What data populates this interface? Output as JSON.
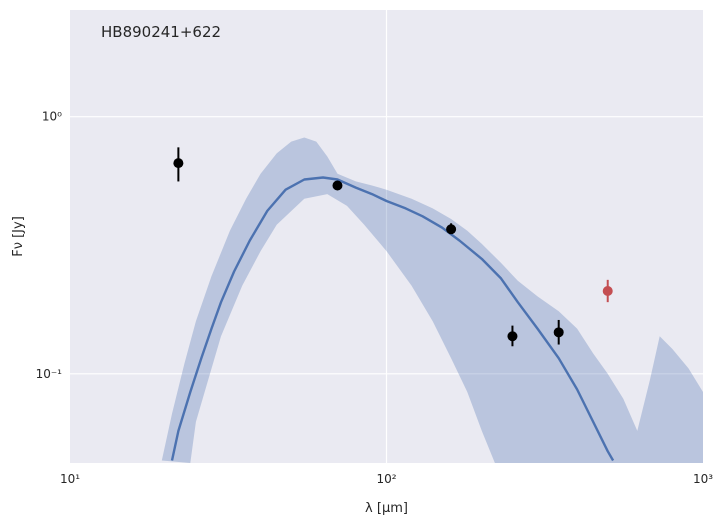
{
  "chart_data": {
    "type": "scatter",
    "annotation": "HB890241+622",
    "xlabel": "λ [μm]",
    "ylabel": "Fν [Jy]",
    "xscale": "log",
    "yscale": "log",
    "xlim": [
      10,
      1000
    ],
    "ylim": [
      0.045,
      2.6
    ],
    "grid": true,
    "background_color": "#EAEAF2",
    "x_ticks": [
      {
        "value": 10,
        "label": "10¹"
      },
      {
        "value": 100,
        "label": "10²"
      },
      {
        "value": 1000,
        "label": "10³"
      }
    ],
    "y_ticks": [
      {
        "value": 0.1,
        "label": "10⁻¹"
      },
      {
        "value": 1,
        "label": "10⁰"
      }
    ],
    "series": [
      {
        "kind": "model_line",
        "color": "#4C72B0",
        "points": [
          [
            21,
            0.046
          ],
          [
            22,
            0.06
          ],
          [
            24,
            0.085
          ],
          [
            26,
            0.115
          ],
          [
            28,
            0.15
          ],
          [
            30,
            0.19
          ],
          [
            33,
            0.25
          ],
          [
            37,
            0.33
          ],
          [
            42,
            0.43
          ],
          [
            48,
            0.52
          ],
          [
            55,
            0.57
          ],
          [
            63,
            0.58
          ],
          [
            70,
            0.57
          ],
          [
            80,
            0.53
          ],
          [
            90,
            0.5
          ],
          [
            100,
            0.47
          ],
          [
            115,
            0.44
          ],
          [
            130,
            0.41
          ],
          [
            150,
            0.37
          ],
          [
            170,
            0.33
          ],
          [
            200,
            0.28
          ],
          [
            230,
            0.235
          ],
          [
            260,
            0.19
          ],
          [
            300,
            0.15
          ],
          [
            350,
            0.115
          ],
          [
            400,
            0.087
          ],
          [
            450,
            0.065
          ],
          [
            500,
            0.05
          ],
          [
            520,
            0.046
          ]
        ]
      },
      {
        "kind": "uncertainty_band",
        "color": "#4C72B0",
        "upper": [
          [
            19.5,
            0.046
          ],
          [
            21,
            0.07
          ],
          [
            23,
            0.11
          ],
          [
            25,
            0.16
          ],
          [
            28,
            0.24
          ],
          [
            32,
            0.36
          ],
          [
            36,
            0.48
          ],
          [
            40,
            0.6
          ],
          [
            45,
            0.72
          ],
          [
            50,
            0.8
          ],
          [
            55,
            0.83
          ],
          [
            60,
            0.8
          ],
          [
            65,
            0.7
          ],
          [
            70,
            0.6
          ],
          [
            80,
            0.56
          ],
          [
            90,
            0.54
          ],
          [
            100,
            0.52
          ],
          [
            120,
            0.48
          ],
          [
            140,
            0.44
          ],
          [
            160,
            0.4
          ],
          [
            180,
            0.36
          ],
          [
            200,
            0.32
          ],
          [
            230,
            0.27
          ],
          [
            260,
            0.23
          ],
          [
            300,
            0.2
          ],
          [
            350,
            0.175
          ],
          [
            400,
            0.15
          ],
          [
            450,
            0.12
          ],
          [
            500,
            0.1
          ],
          [
            560,
            0.08
          ],
          [
            620,
            0.06
          ],
          [
            680,
            0.095
          ],
          [
            730,
            0.14
          ],
          [
            800,
            0.125
          ],
          [
            900,
            0.105
          ],
          [
            1000,
            0.085
          ]
        ],
        "lower": [
          [
            1000,
            0.045
          ],
          [
            220,
            0.045
          ],
          [
            200,
            0.06
          ],
          [
            180,
            0.085
          ],
          [
            160,
            0.115
          ],
          [
            140,
            0.16
          ],
          [
            120,
            0.22
          ],
          [
            100,
            0.3
          ],
          [
            85,
            0.38
          ],
          [
            75,
            0.45
          ],
          [
            65,
            0.5
          ],
          [
            55,
            0.48
          ],
          [
            45,
            0.38
          ],
          [
            40,
            0.3
          ],
          [
            35,
            0.22
          ],
          [
            30,
            0.14
          ],
          [
            27,
            0.09
          ],
          [
            25,
            0.065
          ],
          [
            24,
            0.045
          ]
        ]
      },
      {
        "kind": "data_points",
        "color": "#000000",
        "points": [
          {
            "x": 22,
            "y": 0.66,
            "yerr": [
              0.56,
              0.76
            ]
          },
          {
            "x": 70,
            "y": 0.54,
            "yerr": [
              0.52,
              0.56
            ]
          },
          {
            "x": 160,
            "y": 0.365,
            "yerr": [
              0.35,
              0.385
            ]
          },
          {
            "x": 250,
            "y": 0.14,
            "yerr": [
              0.128,
              0.154
            ]
          },
          {
            "x": 350,
            "y": 0.145,
            "yerr": [
              0.13,
              0.162
            ]
          }
        ]
      },
      {
        "kind": "data_points",
        "color": "#C44E52",
        "points": [
          {
            "x": 500,
            "y": 0.21,
            "yerr": [
              0.19,
              0.232
            ]
          }
        ]
      }
    ]
  }
}
